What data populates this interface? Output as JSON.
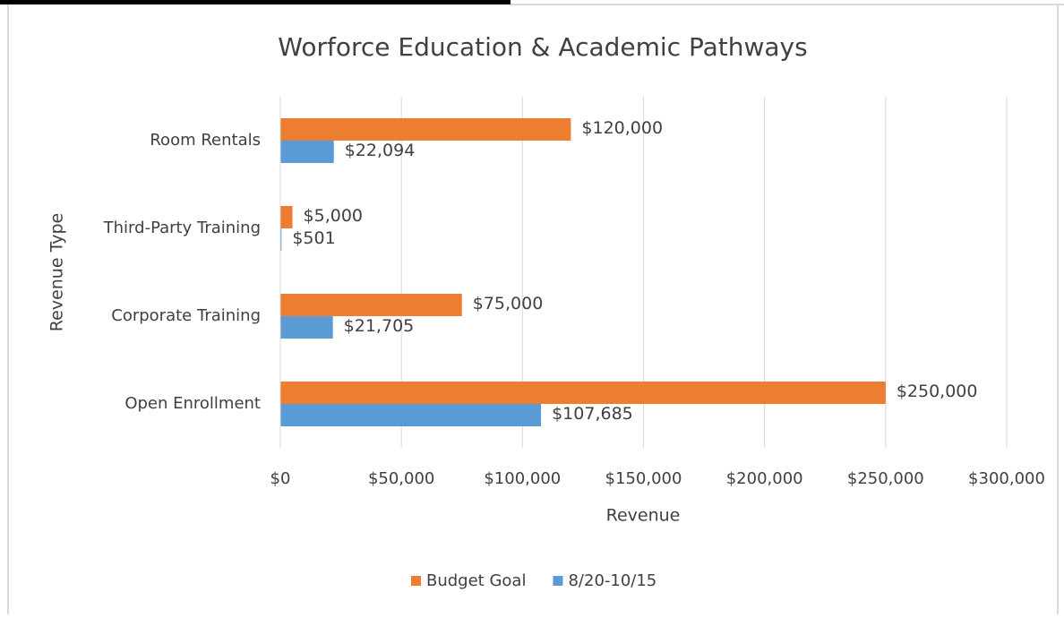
{
  "chart_data": {
    "type": "hbar",
    "title": "Worforce Education & Academic Pathways",
    "x_label": "Revenue",
    "y_label": "Revenue Type",
    "categories": [
      "Room Rentals",
      "Third-Party Training",
      "Corporate Training",
      "Open Enrollment"
    ],
    "series": [
      {
        "name": "Budget Goal",
        "color": "#ed7d31",
        "values": [
          120000,
          5000,
          75000,
          250000
        ],
        "value_labels": [
          "$120,000",
          "$5,000",
          "$75,000",
          "$250,000"
        ]
      },
      {
        "name": "8/20-10/15",
        "color": "#5b9bd5",
        "values": [
          22094,
          501,
          21705,
          107685
        ],
        "value_labels": [
          "$22,094",
          "$501",
          "$21,705",
          "$107,685"
        ]
      }
    ],
    "xlim": [
      0,
      300000
    ],
    "xticks": [
      {
        "value": 0,
        "label": "$0"
      },
      {
        "value": 50000,
        "label": "$50,000"
      },
      {
        "value": 100000,
        "label": "$100,000"
      },
      {
        "value": 150000,
        "label": "$150,000"
      },
      {
        "value": 200000,
        "label": "$200,000"
      },
      {
        "value": 250000,
        "label": "$250,000"
      },
      {
        "value": 300000,
        "label": "$300,000"
      }
    ],
    "grid": true,
    "legend": "bottom"
  }
}
